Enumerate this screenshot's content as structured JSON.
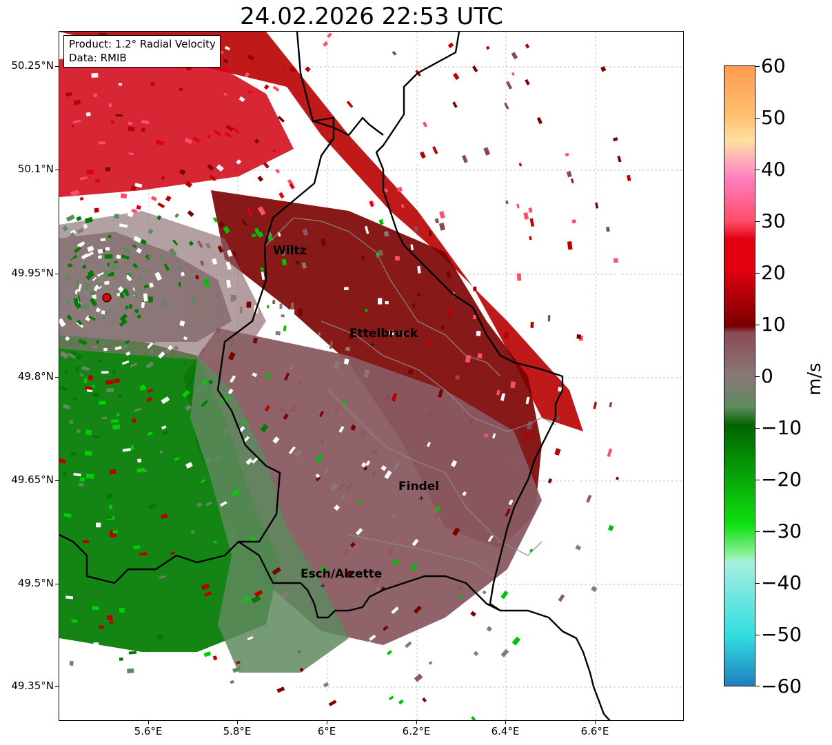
{
  "title": "24.02.2026 22:53 UTC",
  "info": {
    "product": "Product: 1.2° Radial Velocity",
    "source": "Data: RMIB"
  },
  "axes": {
    "lat_ticks": [
      "50.25°N",
      "50.1°N",
      "49.95°N",
      "49.8°N",
      "49.65°N",
      "49.5°N",
      "49.35°N"
    ],
    "lon_ticks": [
      "5.6°E",
      "5.8°E",
      "6°E",
      "6.2°E",
      "6.4°E",
      "6.6°E"
    ]
  },
  "colorbar": {
    "unit": "m/s",
    "ticks": [
      "60",
      "50",
      "40",
      "30",
      "20",
      "10",
      "0",
      "−10",
      "−20",
      "−30",
      "−40",
      "−50",
      "−60"
    ],
    "range": [
      -60,
      60
    ],
    "colors": {
      "outbound_high": "#ff9a50",
      "outbound_mid": "#ff4d6a",
      "outbound_red": "#e00010",
      "outbound_dark": "#780000",
      "near_zero_pos": "#8a4a55",
      "near_zero": "#8a7878",
      "near_zero_neg": "#5f8a5f",
      "inbound_dark": "#006400",
      "inbound_bright": "#10e010",
      "inbound_light": "#a8f0e0",
      "inbound_cyan": "#30dde0",
      "inbound_blue": "#2080c0"
    }
  },
  "map": {
    "radar_site": "radar-site-marker",
    "cities": [
      {
        "name": "Wiltz"
      },
      {
        "name": "Ettelbruck"
      },
      {
        "name": "Findel"
      },
      {
        "name": "Esch/Alzette"
      }
    ]
  }
}
